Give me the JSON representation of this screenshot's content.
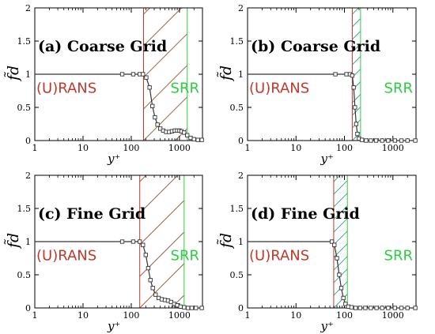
{
  "chart_data": [
    {
      "type": "line",
      "title": "(a) Coarse Grid",
      "xlabel": "y⁺",
      "ylabel": "f̃d",
      "xscale": "log",
      "xlim": [
        1,
        3000
      ],
      "ylim": [
        0,
        2
      ],
      "xticks": [
        "1",
        "10",
        "100",
        "1000"
      ],
      "yticks": [
        "0",
        "0.5",
        "1",
        "1.5",
        "2"
      ],
      "region_left_label": "(U)RANS",
      "region_right_label": "SRR",
      "region_left_bound": 180,
      "region_right_bound": 1450,
      "colors": {
        "left_region": "#c0392b",
        "right_region": "#2ecc40",
        "hatch": "#a0522d"
      },
      "series": [
        {
          "x": [
            1,
            65,
            110,
            150,
            175,
            205,
            240,
            275,
            310,
            350,
            400,
            460,
            530,
            610,
            700,
            800,
            900,
            1000,
            1100,
            1250,
            1450,
            1700,
            2000,
            2400,
            2900
          ],
          "y": [
            1.0,
            1.0,
            1.0,
            1.0,
            1.0,
            0.95,
            0.8,
            0.52,
            0.35,
            0.24,
            0.18,
            0.15,
            0.13,
            0.13,
            0.14,
            0.15,
            0.15,
            0.15,
            0.14,
            0.12,
            0.08,
            0.04,
            0.02,
            0.01,
            0.01
          ]
        }
      ]
    },
    {
      "type": "line",
      "title": "(b) Coarse Grid",
      "xlabel": "y⁺",
      "ylabel": "f̃d",
      "xscale": "log",
      "xlim": [
        1,
        3000
      ],
      "ylim": [
        0,
        2
      ],
      "xticks": [
        "1",
        "10",
        "100",
        "1000"
      ],
      "yticks": [
        "0",
        "0.5",
        "1",
        "1.5",
        "2"
      ],
      "region_left_label": "(U)RANS",
      "region_right_label": "SRR",
      "region_left_bound": 145,
      "region_right_bound": 215,
      "colors": {
        "left_region": "#c0392b",
        "right_region": "#2ecc40",
        "hatch": "#2a9d8f"
      },
      "series": [
        {
          "x": [
            1,
            65,
            110,
            130,
            145,
            155,
            165,
            175,
            185,
            200,
            230,
            280,
            350,
            450,
            600,
            800,
            1100,
            1500,
            2000,
            2900
          ],
          "y": [
            1.0,
            1.0,
            1.0,
            1.0,
            0.98,
            0.8,
            0.5,
            0.25,
            0.1,
            0.03,
            0.01,
            0.0,
            0.0,
            0.0,
            0.0,
            0.0,
            0.0,
            0.0,
            0.0,
            0.0
          ]
        }
      ]
    },
    {
      "type": "line",
      "title": "(c) Fine Grid",
      "xlabel": "y⁺",
      "ylabel": "f̃d",
      "xscale": "log",
      "xlim": [
        1,
        3000
      ],
      "ylim": [
        0,
        2
      ],
      "xticks": [
        "1",
        "10",
        "100",
        "1000"
      ],
      "yticks": [
        "0",
        "0.5",
        "1",
        "1.5",
        "2"
      ],
      "region_left_label": "(U)RANS",
      "region_right_label": "SRR",
      "region_left_bound": 150,
      "region_right_bound": 1250,
      "colors": {
        "left_region": "#c0392b",
        "right_region": "#2ecc40",
        "hatch": "#a0522d"
      },
      "series": [
        {
          "x": [
            1,
            65,
            110,
            150,
            175,
            200,
            225,
            250,
            280,
            320,
            370,
            430,
            500,
            580,
            670,
            780,
            900,
            1050,
            1250,
            1500,
            1800,
            2200,
            2900
          ],
          "y": [
            1.0,
            1.0,
            1.0,
            1.0,
            0.95,
            0.8,
            0.6,
            0.42,
            0.3,
            0.2,
            0.15,
            0.13,
            0.12,
            0.11,
            0.09,
            0.06,
            0.04,
            0.02,
            0.01,
            0.0,
            0.0,
            0.0,
            0.0
          ]
        }
      ]
    },
    {
      "type": "line",
      "title": "(d) Fine Grid",
      "xlabel": "y⁺",
      "ylabel": "f̃d",
      "xscale": "log",
      "xlim": [
        1,
        3000
      ],
      "ylim": [
        0,
        2
      ],
      "xticks": [
        "1",
        "10",
        "100",
        "1000"
      ],
      "yticks": [
        "0",
        "0.5",
        "1",
        "1.5",
        "2"
      ],
      "region_left_label": "(U)RANS",
      "region_right_label": "SRR",
      "region_left_bound": 60,
      "region_right_bound": 115,
      "colors": {
        "left_region": "#c0392b",
        "right_region": "#2ecc40",
        "hatch": "#2a9d8f"
      },
      "series": [
        {
          "x": [
            1,
            20,
            40,
            55,
            62,
            70,
            78,
            86,
            95,
            105,
            120,
            140,
            170,
            210,
            270,
            350,
            460,
            600,
            800,
            1100,
            1500,
            2000,
            2900
          ],
          "y": [
            1.0,
            1.0,
            1.0,
            1.0,
            0.95,
            0.75,
            0.5,
            0.3,
            0.15,
            0.06,
            0.02,
            0.01,
            0.0,
            0.0,
            0.0,
            0.0,
            0.0,
            0.0,
            0.0,
            0.0,
            0.0,
            0.0,
            0.0
          ]
        }
      ]
    }
  ]
}
